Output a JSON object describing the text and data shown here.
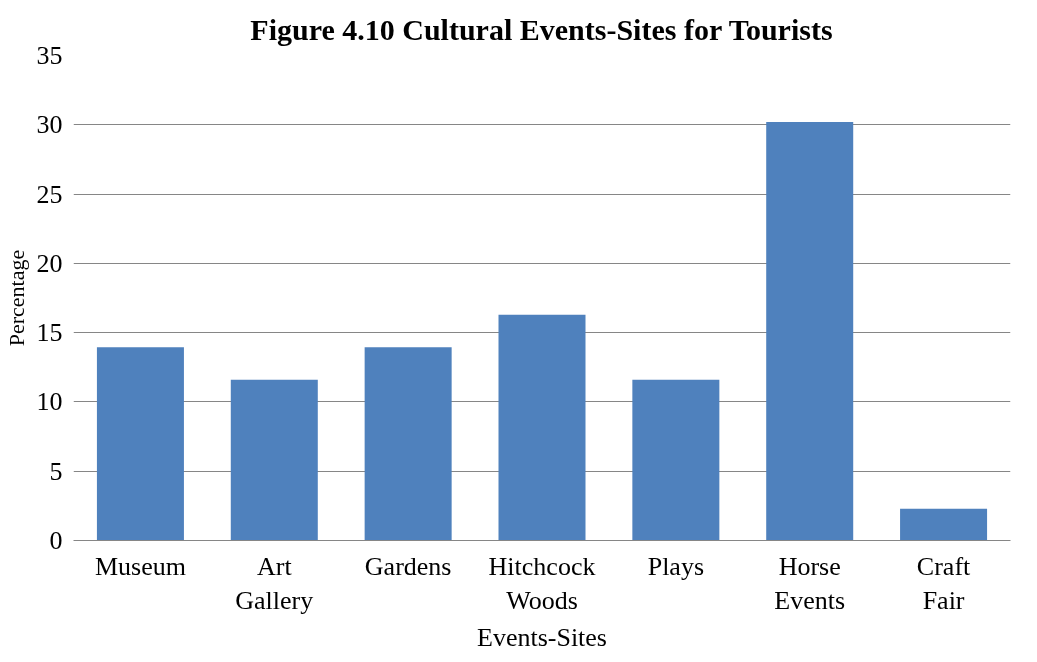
{
  "chart_data": {
    "type": "bar",
    "title": "Figure 4.10 Cultural Events-Sites for Tourists",
    "xlabel": "Events-Sites",
    "ylabel": "Percentage",
    "categories": [
      "Museum",
      "Art Gallery",
      "Gardens",
      "Hitchcock Woods",
      "Plays",
      "Horse Events",
      "Craft Fair"
    ],
    "values": [
      13.95,
      11.6,
      13.95,
      16.3,
      11.6,
      30.2,
      2.3
    ],
    "color": "#4f81bd",
    "ylim": [
      0,
      35
    ],
    "yticks": [
      0,
      5,
      10,
      15,
      20,
      25,
      30,
      35
    ],
    "grid": "y"
  }
}
